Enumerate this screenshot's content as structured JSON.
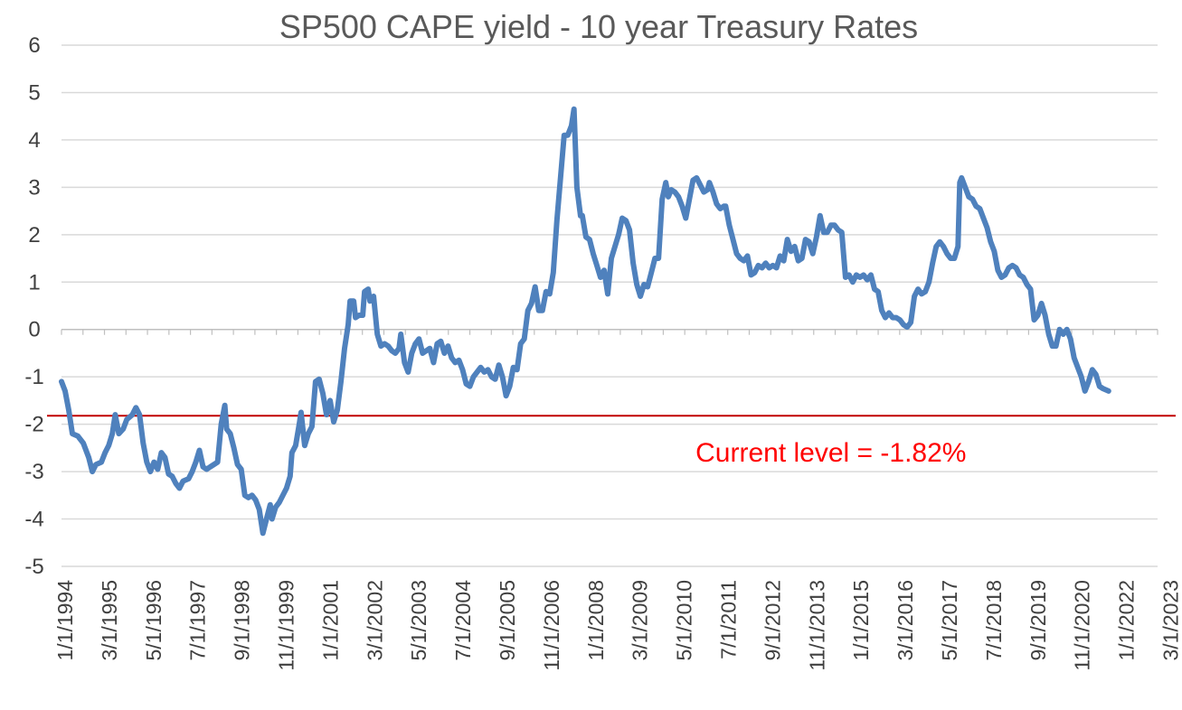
{
  "chart_data": {
    "type": "line",
    "title": "SP500 CAPE yield - 10 year Treasury Rates",
    "xlabel": "",
    "ylabel": "",
    "ylim": [
      -5,
      6
    ],
    "yticks": [
      "6",
      "5",
      "4",
      "3",
      "2",
      "1",
      "0",
      "-1",
      "-2",
      "-3",
      "-4",
      "-5"
    ],
    "grid": true,
    "xticks": [
      "1/1/1994",
      "3/1/1995",
      "5/1/1996",
      "7/1/1997",
      "9/1/1998",
      "11/1/1999",
      "1/1/2001",
      "3/1/2002",
      "5/1/2003",
      "7/1/2004",
      "9/1/2005",
      "11/1/2006",
      "1/1/2008",
      "3/1/2009",
      "5/1/2010",
      "7/1/2011",
      "9/1/2012",
      "11/1/2013",
      "1/1/2015",
      "3/1/2016",
      "5/1/2017",
      "7/1/2018",
      "9/1/2019",
      "11/1/2020",
      "1/1/2022",
      "3/1/2023"
    ],
    "x_range": [
      1994.0,
      2024.2
    ],
    "series": [
      {
        "name": "CAPE yield - 10 year Treasury",
        "color": "#4f81bd",
        "points": [
          [
            1994.0,
            -1.1
          ],
          [
            1994.1,
            -1.3
          ],
          [
            1994.2,
            -1.7
          ],
          [
            1994.3,
            -2.2
          ],
          [
            1994.45,
            -2.25
          ],
          [
            1994.6,
            -2.4
          ],
          [
            1994.75,
            -2.7
          ],
          [
            1994.85,
            -3.0
          ],
          [
            1994.95,
            -2.85
          ],
          [
            1995.1,
            -2.8
          ],
          [
            1995.2,
            -2.6
          ],
          [
            1995.3,
            -2.45
          ],
          [
            1995.4,
            -2.2
          ],
          [
            1995.48,
            -1.8
          ],
          [
            1995.58,
            -2.2
          ],
          [
            1995.7,
            -2.1
          ],
          [
            1995.8,
            -1.9
          ],
          [
            1995.95,
            -1.8
          ],
          [
            1996.05,
            -1.65
          ],
          [
            1996.15,
            -1.8
          ],
          [
            1996.25,
            -2.4
          ],
          [
            1996.35,
            -2.8
          ],
          [
            1996.45,
            -3.0
          ],
          [
            1996.55,
            -2.8
          ],
          [
            1996.65,
            -2.95
          ],
          [
            1996.75,
            -2.6
          ],
          [
            1996.85,
            -2.7
          ],
          [
            1996.95,
            -3.05
          ],
          [
            1997.05,
            -3.1
          ],
          [
            1997.15,
            -3.25
          ],
          [
            1997.25,
            -3.35
          ],
          [
            1997.35,
            -3.2
          ],
          [
            1997.5,
            -3.15
          ],
          [
            1997.6,
            -3.0
          ],
          [
            1997.7,
            -2.8
          ],
          [
            1997.8,
            -2.55
          ],
          [
            1997.9,
            -2.9
          ],
          [
            1998.0,
            -2.95
          ],
          [
            1998.1,
            -2.9
          ],
          [
            1998.2,
            -2.85
          ],
          [
            1998.3,
            -2.8
          ],
          [
            1998.4,
            -2.0
          ],
          [
            1998.5,
            -1.6
          ],
          [
            1998.55,
            -2.1
          ],
          [
            1998.65,
            -2.2
          ],
          [
            1998.75,
            -2.5
          ],
          [
            1998.85,
            -2.85
          ],
          [
            1998.95,
            -2.95
          ],
          [
            1999.05,
            -3.5
          ],
          [
            1999.15,
            -3.55
          ],
          [
            1999.25,
            -3.5
          ],
          [
            1999.35,
            -3.6
          ],
          [
            1999.45,
            -3.8
          ],
          [
            1999.55,
            -4.3
          ],
          [
            1999.65,
            -4.0
          ],
          [
            1999.75,
            -3.7
          ],
          [
            1999.8,
            -4.0
          ],
          [
            1999.9,
            -3.75
          ],
          [
            2000.0,
            -3.65
          ],
          [
            2000.1,
            -3.5
          ],
          [
            2000.2,
            -3.35
          ],
          [
            2000.3,
            -3.1
          ],
          [
            2000.35,
            -2.6
          ],
          [
            2000.45,
            -2.45
          ],
          [
            2000.55,
            -2.0
          ],
          [
            2000.6,
            -1.75
          ],
          [
            2000.7,
            -2.45
          ],
          [
            2000.8,
            -2.2
          ],
          [
            2000.9,
            -2.05
          ],
          [
            2001.0,
            -1.1
          ],
          [
            2001.1,
            -1.05
          ],
          [
            2001.2,
            -1.35
          ],
          [
            2001.3,
            -1.8
          ],
          [
            2001.4,
            -1.5
          ],
          [
            2001.5,
            -1.95
          ],
          [
            2001.6,
            -1.7
          ],
          [
            2001.7,
            -1.1
          ],
          [
            2001.8,
            -0.4
          ],
          [
            2001.9,
            0.1
          ],
          [
            2001.95,
            0.6
          ],
          [
            2002.05,
            0.6
          ],
          [
            2002.1,
            0.25
          ],
          [
            2002.2,
            0.3
          ],
          [
            2002.3,
            0.3
          ],
          [
            2002.35,
            0.8
          ],
          [
            2002.45,
            0.85
          ],
          [
            2002.5,
            0.6
          ],
          [
            2002.6,
            0.7
          ],
          [
            2002.7,
            -0.1
          ],
          [
            2002.8,
            -0.35
          ],
          [
            2002.9,
            -0.3
          ],
          [
            2003.0,
            -0.35
          ],
          [
            2003.1,
            -0.45
          ],
          [
            2003.2,
            -0.5
          ],
          [
            2003.3,
            -0.4
          ],
          [
            2003.35,
            -0.1
          ],
          [
            2003.45,
            -0.7
          ],
          [
            2003.55,
            -0.9
          ],
          [
            2003.65,
            -0.5
          ],
          [
            2003.75,
            -0.3
          ],
          [
            2003.85,
            -0.2
          ],
          [
            2003.95,
            -0.5
          ],
          [
            2004.05,
            -0.45
          ],
          [
            2004.15,
            -0.4
          ],
          [
            2004.25,
            -0.7
          ],
          [
            2004.35,
            -0.3
          ],
          [
            2004.45,
            -0.25
          ],
          [
            2004.55,
            -0.5
          ],
          [
            2004.65,
            -0.35
          ],
          [
            2004.75,
            -0.6
          ],
          [
            2004.85,
            -0.7
          ],
          [
            2004.95,
            -0.65
          ],
          [
            2005.05,
            -0.85
          ],
          [
            2005.15,
            -1.15
          ],
          [
            2005.25,
            -1.2
          ],
          [
            2005.35,
            -1.0
          ],
          [
            2005.45,
            -0.9
          ],
          [
            2005.55,
            -0.8
          ],
          [
            2005.65,
            -0.9
          ],
          [
            2005.75,
            -0.85
          ],
          [
            2005.85,
            -1.0
          ],
          [
            2005.95,
            -1.05
          ],
          [
            2006.05,
            -0.75
          ],
          [
            2006.15,
            -1.0
          ],
          [
            2006.25,
            -1.4
          ],
          [
            2006.35,
            -1.2
          ],
          [
            2006.45,
            -0.8
          ],
          [
            2006.55,
            -0.85
          ],
          [
            2006.65,
            -0.3
          ],
          [
            2006.75,
            -0.2
          ],
          [
            2006.85,
            0.4
          ],
          [
            2006.95,
            0.55
          ],
          [
            2007.05,
            0.9
          ],
          [
            2007.15,
            0.4
          ],
          [
            2007.25,
            0.4
          ],
          [
            2007.35,
            0.8
          ],
          [
            2007.45,
            0.75
          ],
          [
            2007.55,
            1.2
          ],
          [
            2007.65,
            2.3
          ],
          [
            2007.75,
            3.2
          ],
          [
            2007.85,
            4.1
          ],
          [
            2007.95,
            4.1
          ],
          [
            2008.05,
            4.3
          ],
          [
            2008.12,
            4.65
          ],
          [
            2008.2,
            3.0
          ],
          [
            2008.3,
            2.4
          ],
          [
            2008.35,
            2.4
          ],
          [
            2008.45,
            1.95
          ],
          [
            2008.55,
            1.9
          ],
          [
            2008.65,
            1.6
          ],
          [
            2008.75,
            1.35
          ],
          [
            2008.85,
            1.1
          ],
          [
            2008.95,
            1.25
          ],
          [
            2009.05,
            0.75
          ],
          [
            2009.15,
            1.5
          ],
          [
            2009.25,
            1.75
          ],
          [
            2009.35,
            2.0
          ],
          [
            2009.45,
            2.35
          ],
          [
            2009.55,
            2.3
          ],
          [
            2009.65,
            2.1
          ],
          [
            2009.75,
            1.4
          ],
          [
            2009.85,
            0.95
          ],
          [
            2009.95,
            0.7
          ],
          [
            2010.05,
            0.95
          ],
          [
            2010.15,
            0.9
          ],
          [
            2010.25,
            1.2
          ],
          [
            2010.35,
            1.5
          ],
          [
            2010.45,
            1.5
          ],
          [
            2010.55,
            2.75
          ],
          [
            2010.65,
            3.1
          ],
          [
            2010.72,
            2.8
          ],
          [
            2010.8,
            2.95
          ],
          [
            2010.9,
            2.9
          ],
          [
            2011.0,
            2.8
          ],
          [
            2011.1,
            2.6
          ],
          [
            2011.2,
            2.35
          ],
          [
            2011.3,
            2.75
          ],
          [
            2011.4,
            3.15
          ],
          [
            2011.5,
            3.2
          ],
          [
            2011.6,
            3.05
          ],
          [
            2011.7,
            2.9
          ],
          [
            2011.8,
            2.95
          ],
          [
            2011.85,
            3.1
          ],
          [
            2011.95,
            2.9
          ],
          [
            2012.05,
            2.65
          ],
          [
            2012.15,
            2.55
          ],
          [
            2012.25,
            2.6
          ],
          [
            2012.3,
            2.6
          ],
          [
            2012.4,
            2.2
          ],
          [
            2012.5,
            1.9
          ],
          [
            2012.6,
            1.6
          ],
          [
            2012.7,
            1.5
          ],
          [
            2012.8,
            1.45
          ],
          [
            2012.9,
            1.55
          ],
          [
            2013.0,
            1.15
          ],
          [
            2013.1,
            1.2
          ],
          [
            2013.2,
            1.35
          ],
          [
            2013.3,
            1.3
          ],
          [
            2013.4,
            1.4
          ],
          [
            2013.5,
            1.3
          ],
          [
            2013.6,
            1.35
          ],
          [
            2013.7,
            1.3
          ],
          [
            2013.8,
            1.55
          ],
          [
            2013.9,
            1.45
          ],
          [
            2014.0,
            1.9
          ],
          [
            2014.1,
            1.65
          ],
          [
            2014.2,
            1.75
          ],
          [
            2014.3,
            1.45
          ],
          [
            2014.4,
            1.5
          ],
          [
            2014.5,
            1.9
          ],
          [
            2014.6,
            1.85
          ],
          [
            2014.7,
            1.6
          ],
          [
            2014.8,
            1.95
          ],
          [
            2014.9,
            2.4
          ],
          [
            2015.0,
            2.05
          ],
          [
            2015.1,
            2.05
          ],
          [
            2015.2,
            2.2
          ],
          [
            2015.3,
            2.2
          ],
          [
            2015.4,
            2.1
          ],
          [
            2015.5,
            2.05
          ],
          [
            2015.6,
            1.1
          ],
          [
            2015.7,
            1.15
          ],
          [
            2015.8,
            1.0
          ],
          [
            2015.9,
            1.15
          ],
          [
            2016.0,
            1.1
          ],
          [
            2016.1,
            1.15
          ],
          [
            2016.2,
            1.05
          ],
          [
            2016.3,
            1.15
          ],
          [
            2016.4,
            0.85
          ],
          [
            2016.5,
            0.8
          ],
          [
            2016.6,
            0.4
          ],
          [
            2016.7,
            0.25
          ],
          [
            2016.8,
            0.35
          ],
          [
            2016.9,
            0.25
          ],
          [
            2017.0,
            0.25
          ],
          [
            2017.1,
            0.2
          ],
          [
            2017.2,
            0.1
          ],
          [
            2017.3,
            0.05
          ],
          [
            2017.4,
            0.15
          ],
          [
            2017.5,
            0.7
          ],
          [
            2017.6,
            0.85
          ],
          [
            2017.7,
            0.75
          ],
          [
            2017.8,
            0.8
          ],
          [
            2017.9,
            1.0
          ],
          [
            2018.0,
            1.4
          ],
          [
            2018.1,
            1.75
          ],
          [
            2018.2,
            1.85
          ],
          [
            2018.3,
            1.75
          ],
          [
            2018.4,
            1.6
          ],
          [
            2018.5,
            1.5
          ],
          [
            2018.6,
            1.5
          ],
          [
            2018.7,
            1.75
          ],
          [
            2018.75,
            3.1
          ],
          [
            2018.8,
            3.2
          ],
          [
            2018.9,
            3.0
          ],
          [
            2019.0,
            2.8
          ],
          [
            2019.1,
            2.75
          ],
          [
            2019.2,
            2.6
          ],
          [
            2019.3,
            2.55
          ],
          [
            2019.4,
            2.35
          ],
          [
            2019.5,
            2.15
          ],
          [
            2019.6,
            1.85
          ],
          [
            2019.7,
            1.65
          ],
          [
            2019.8,
            1.25
          ],
          [
            2019.9,
            1.1
          ],
          [
            2020.0,
            1.15
          ],
          [
            2020.1,
            1.3
          ],
          [
            2020.2,
            1.35
          ],
          [
            2020.3,
            1.3
          ],
          [
            2020.4,
            1.15
          ],
          [
            2020.5,
            1.1
          ],
          [
            2020.6,
            0.95
          ],
          [
            2020.7,
            0.85
          ],
          [
            2020.8,
            0.2
          ],
          [
            2020.9,
            0.3
          ],
          [
            2021.0,
            0.55
          ],
          [
            2021.1,
            0.3
          ],
          [
            2021.2,
            -0.1
          ],
          [
            2021.3,
            -0.35
          ],
          [
            2021.4,
            -0.35
          ],
          [
            2021.5,
            0.0
          ],
          [
            2021.6,
            -0.1
          ],
          [
            2021.7,
            0.0
          ],
          [
            2021.8,
            -0.2
          ],
          [
            2021.9,
            -0.6
          ],
          [
            2022.0,
            -0.8
          ],
          [
            2022.1,
            -1.0
          ],
          [
            2022.2,
            -1.3
          ],
          [
            2022.3,
            -1.1
          ],
          [
            2022.4,
            -0.85
          ],
          [
            2022.5,
            -0.95
          ],
          [
            2022.6,
            -1.2
          ],
          [
            2022.7,
            -1.25
          ],
          [
            2022.85,
            -1.3
          ]
        ]
      }
    ],
    "reference_lines": [
      {
        "name": "current-level-line",
        "y": -1.82,
        "color": "#c00000"
      }
    ],
    "annotations": [
      {
        "text": "Current level = -1.82%",
        "color": "#ff0000",
        "x": 2015.2,
        "y": -2.6
      }
    ]
  }
}
